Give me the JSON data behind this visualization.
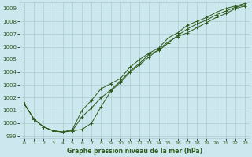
{
  "xlabel": "Graphe pression niveau de la mer (hPa)",
  "bg_color": "#cce8ee",
  "grid_color": "#aacccc",
  "line_color": "#2d5a1b",
  "xlim": [
    -0.5,
    23.5
  ],
  "ylim": [
    998.8,
    1009.5
  ],
  "yticks": [
    999,
    1000,
    1001,
    1002,
    1003,
    1004,
    1005,
    1006,
    1007,
    1008,
    1009
  ],
  "xticks": [
    0,
    1,
    2,
    3,
    4,
    5,
    6,
    7,
    8,
    9,
    10,
    11,
    12,
    13,
    14,
    15,
    16,
    17,
    18,
    19,
    20,
    21,
    22,
    23
  ],
  "series": [
    [
      1001.5,
      1000.3,
      999.7,
      999.4,
      999.3,
      999.4,
      999.5,
      1000.0,
      1001.3,
      1002.5,
      1003.2,
      1004.0,
      1004.6,
      1005.2,
      1005.8,
      1006.4,
      1006.8,
      1007.1,
      1007.5,
      1007.9,
      1008.3,
      1008.6,
      1009.0,
      1009.2
    ],
    [
      1001.5,
      1000.3,
      999.7,
      999.4,
      999.3,
      999.4,
      1000.5,
      1001.2,
      1002.0,
      1002.6,
      1003.3,
      1004.1,
      1004.7,
      1005.4,
      1005.7,
      1006.3,
      1006.9,
      1007.4,
      1007.8,
      1008.1,
      1008.5,
      1008.8,
      1009.1,
      1009.3
    ],
    [
      1001.5,
      1000.3,
      999.7,
      999.4,
      999.3,
      999.5,
      1001.0,
      1001.8,
      1002.7,
      1003.1,
      1003.5,
      1004.4,
      1005.0,
      1005.5,
      1005.9,
      1006.7,
      1007.1,
      1007.7,
      1008.0,
      1008.3,
      1008.7,
      1009.0,
      1009.2,
      1009.4
    ]
  ]
}
